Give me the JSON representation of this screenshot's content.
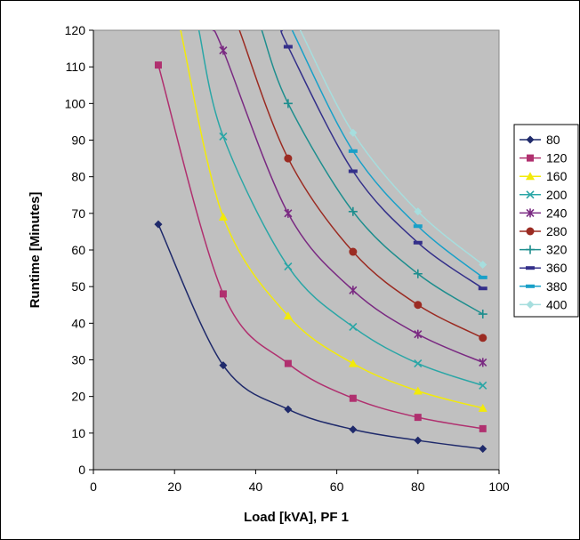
{
  "chart_data": {
    "type": "line",
    "title": "",
    "xlabel": "Load [kVA], PF 1",
    "ylabel": "Runtime [Minutes]",
    "xlim": [
      0,
      100
    ],
    "ylim": [
      0,
      120
    ],
    "x_ticks": [
      0,
      20,
      40,
      60,
      80,
      100
    ],
    "y_ticks": [
      0,
      10,
      20,
      30,
      40,
      50,
      60,
      70,
      80,
      90,
      100,
      110,
      120
    ],
    "grid": false,
    "legend_position": "right",
    "plot_background": "#c0c0c0",
    "series": [
      {
        "name": "80",
        "color": "#1f2a6b",
        "marker": "diamond",
        "x": [
          16,
          32,
          48,
          64,
          80,
          96
        ],
        "y": [
          67,
          28.5,
          16.5,
          11,
          8,
          5.7
        ]
      },
      {
        "name": "120",
        "color": "#b0306f",
        "marker": "square",
        "x": [
          16,
          32,
          48,
          64,
          80,
          96
        ],
        "y": [
          110.5,
          48,
          29,
          19.5,
          14.3,
          11.2
        ]
      },
      {
        "name": "160",
        "color": "#f2ea0a",
        "marker": "triangle",
        "x": [
          21.5,
          32,
          48,
          64,
          80,
          96
        ],
        "y": [
          120,
          69,
          42,
          29,
          21.5,
          16.8
        ]
      },
      {
        "name": "200",
        "color": "#2aa6a6",
        "marker": "x",
        "x": [
          26,
          32,
          48,
          64,
          80,
          96
        ],
        "y": [
          120,
          91,
          55.5,
          39,
          29,
          23
        ]
      },
      {
        "name": "240",
        "color": "#7a2a82",
        "marker": "star",
        "x": [
          29.5,
          32,
          48,
          64,
          80,
          96
        ],
        "y": [
          120,
          114.5,
          70,
          49,
          37,
          29.3
        ]
      },
      {
        "name": "280",
        "color": "#9b2b22",
        "marker": "circle",
        "x": [
          36,
          48,
          64,
          80,
          96
        ],
        "y": [
          120,
          85,
          59.5,
          45,
          36
        ]
      },
      {
        "name": "320",
        "color": "#1e8e8e",
        "marker": "plus",
        "x": [
          41.5,
          48,
          64,
          80,
          96
        ],
        "y": [
          120,
          100,
          70.5,
          53.5,
          42.5
        ]
      },
      {
        "name": "360",
        "color": "#34308a",
        "marker": "dash",
        "x": [
          46.5,
          48,
          64,
          80,
          96
        ],
        "y": [
          120,
          115.5,
          81.5,
          62,
          49.5
        ]
      },
      {
        "name": "380",
        "color": "#19a0c8",
        "marker": "dash",
        "x": [
          49,
          64,
          80,
          96
        ],
        "y": [
          120,
          87,
          66.5,
          52.5
        ]
      },
      {
        "name": "400",
        "color": "#a6dede",
        "marker": "diamond",
        "x": [
          51,
          64,
          80,
          96
        ],
        "y": [
          120,
          92,
          70.5,
          56
        ]
      }
    ]
  }
}
